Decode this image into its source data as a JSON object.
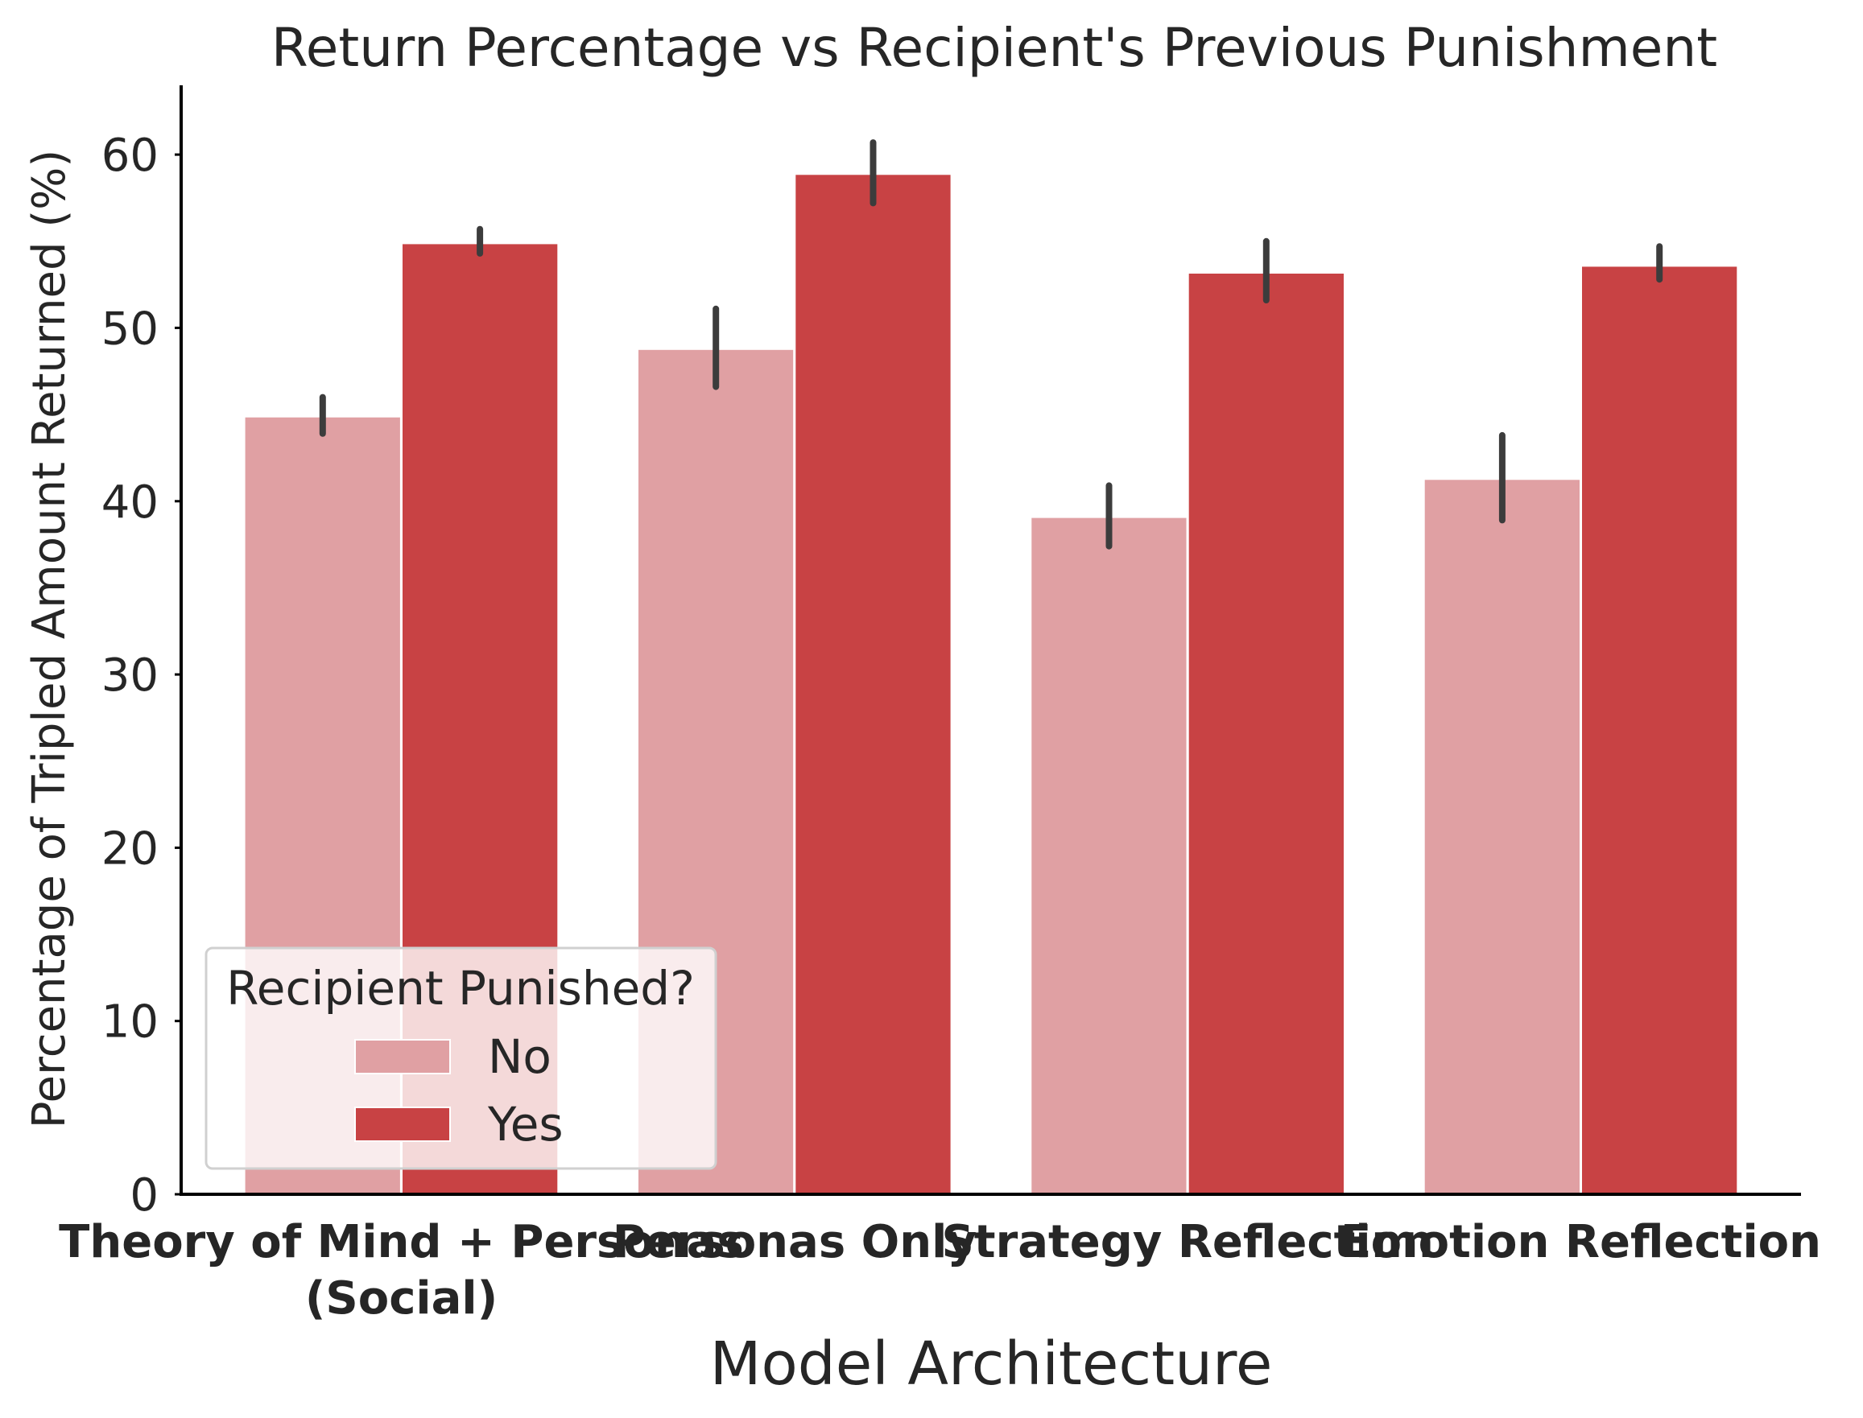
{
  "chart_data": {
    "type": "bar",
    "title": "Return Percentage vs Recipient's Previous Punishment",
    "xlabel": "Model Architecture",
    "ylabel": "Percentage of Tripled Amount Returned (%)",
    "categories": [
      [
        "Theory of Mind + Personas",
        "(Social)"
      ],
      [
        "Personas Only"
      ],
      [
        "Strategy Reflection"
      ],
      [
        "Emotion Reflection"
      ]
    ],
    "series": [
      {
        "name": "No",
        "color": "#e0a0a3",
        "values": [
          44.9,
          48.8,
          39.1,
          41.3
        ],
        "error_low": [
          43.9,
          46.6,
          37.4,
          38.9
        ],
        "error_high": [
          46.0,
          51.1,
          40.9,
          43.8
        ]
      },
      {
        "name": "Yes",
        "color": "#c84244",
        "values": [
          54.9,
          58.9,
          53.2,
          53.6
        ],
        "error_low": [
          54.3,
          57.2,
          51.6,
          52.8
        ],
        "error_high": [
          55.7,
          60.7,
          55.0,
          54.7
        ]
      }
    ],
    "ylim": [
      0,
      64
    ],
    "yticks": [
      0,
      10,
      20,
      30,
      40,
      50,
      60
    ],
    "grid": false,
    "legend": {
      "title": "Recipient Punished?",
      "position": "lower-left"
    }
  }
}
